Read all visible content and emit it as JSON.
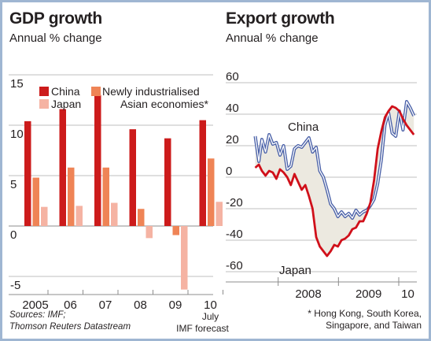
{
  "colors": {
    "china": "#cc1b1b",
    "nie": "#ef8456",
    "japan": "#f5b3a3",
    "china_line": "#4a61a8",
    "japan_line": "#d0101a",
    "fill": "#ece9e0",
    "grid": "#bfbfbf",
    "frame": "#9fb6d2"
  },
  "sources": [
    "Sources: IMF;",
    "Thomson Reuters Datastream"
  ],
  "footnote": [
    "* Hong Kong, South Korea,",
    "Singapore, and Taiwan"
  ],
  "chart_data": [
    {
      "type": "bar",
      "title": "GDP growth",
      "subtitle": "Annual % change",
      "categories": [
        "2005",
        "06",
        "07",
        "08",
        "09",
        "10"
      ],
      "category_note": [
        "July",
        "IMF forecast"
      ],
      "series": [
        {
          "name": "China",
          "color": "#cc1b1b",
          "values": [
            10.4,
            11.6,
            13.0,
            9.6,
            8.7,
            10.5
          ]
        },
        {
          "name": "Newly industrialised Asian economies*",
          "color": "#ef8456",
          "values": [
            4.8,
            5.8,
            5.8,
            1.7,
            -0.9,
            6.7
          ]
        },
        {
          "name": "Japan",
          "color": "#f5b3a3",
          "values": [
            1.9,
            2.0,
            2.3,
            -1.2,
            -6.3,
            2.4
          ]
        }
      ],
      "legend": [
        "China",
        "Newly industrialised",
        "Asian economies*",
        "Japan"
      ],
      "yticks": [
        15,
        10,
        5,
        0,
        -5
      ],
      "ylim": [
        -6,
        15
      ]
    },
    {
      "type": "line",
      "title": "Export growth",
      "subtitle": "Annual % change",
      "x_labels": [
        "2008",
        "2009",
        "10"
      ],
      "yticks": [
        60,
        40,
        20,
        0,
        -20,
        -40,
        -60
      ],
      "ylim": [
        -60,
        60
      ],
      "series": [
        {
          "name": "China",
          "color": "#4a61a8",
          "x": [
            2007.62,
            2007.68,
            2007.73,
            2007.79,
            2007.85,
            2007.91,
            2007.97,
            2008.03,
            2008.09,
            2008.15,
            2008.21,
            2008.27,
            2008.33,
            2008.39,
            2008.45,
            2008.51,
            2008.57,
            2008.63,
            2008.69,
            2008.75,
            2008.81,
            2008.87,
            2008.93,
            2008.99,
            2009.05,
            2009.11,
            2009.17,
            2009.23,
            2009.29,
            2009.35,
            2009.41,
            2009.47,
            2009.53,
            2009.59,
            2009.65,
            2009.71,
            2009.77,
            2009.83,
            2009.89,
            2009.95,
            2010.01,
            2010.07,
            2010.13,
            2010.19,
            2010.25
          ],
          "y": [
            26,
            10,
            24,
            16,
            27,
            21,
            22,
            14,
            20,
            5,
            7,
            18,
            20,
            19,
            22,
            25,
            16,
            19,
            4,
            0,
            -8,
            -17,
            -20,
            -25,
            -22,
            -25,
            -23,
            -26,
            -21,
            -24,
            -22,
            -21,
            -18,
            -14,
            -4,
            11,
            33,
            41,
            28,
            26,
            42,
            30,
            48,
            44,
            39
          ]
        },
        {
          "name": "Japan",
          "color": "#d0101a",
          "x": [
            2007.62,
            2007.68,
            2007.73,
            2007.79,
            2007.85,
            2007.91,
            2007.97,
            2008.03,
            2008.09,
            2008.15,
            2008.21,
            2008.27,
            2008.33,
            2008.39,
            2008.45,
            2008.51,
            2008.57,
            2008.63,
            2008.69,
            2008.75,
            2008.81,
            2008.87,
            2008.93,
            2008.99,
            2009.05,
            2009.11,
            2009.17,
            2009.23,
            2009.29,
            2009.35,
            2009.41,
            2009.47,
            2009.53,
            2009.59,
            2009.65,
            2009.71,
            2009.77,
            2009.83,
            2009.89,
            2009.95,
            2010.01,
            2010.07,
            2010.13,
            2010.19,
            2010.25
          ],
          "y": [
            6,
            8,
            4,
            1,
            4,
            3,
            -1,
            5,
            3,
            0,
            -5,
            2,
            -3,
            -8,
            -5,
            -12,
            -20,
            -38,
            -44,
            -47,
            -50,
            -47,
            -43,
            -44,
            -40,
            -39,
            -37,
            -33,
            -32,
            -28,
            -28,
            -23,
            -16,
            -2,
            18,
            29,
            38,
            42,
            45,
            44,
            42,
            37,
            33,
            30,
            27
          ]
        }
      ],
      "annotations": [
        "China",
        "Japan"
      ]
    }
  ]
}
